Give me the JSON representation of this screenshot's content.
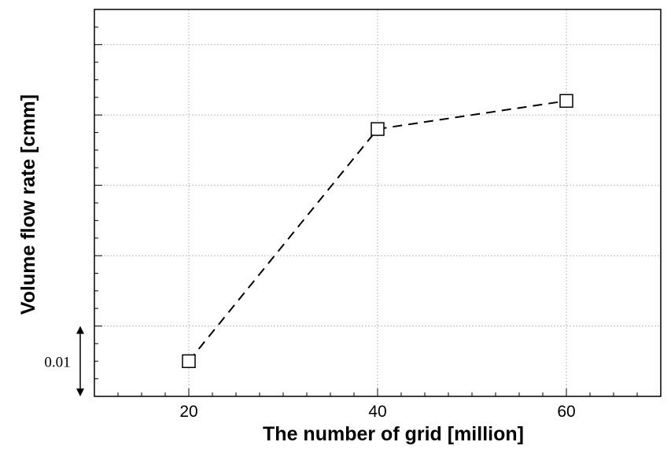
{
  "chart_data": {
    "type": "line",
    "xlabel": "The number of grid [million]",
    "ylabel": "Volume flow rate [cmm]",
    "xlim": [
      10,
      70
    ],
    "ylim": [
      0,
      0.055
    ],
    "x_ticks": [
      20,
      40,
      60
    ],
    "x_tick_labels": [
      "20",
      "40",
      "60"
    ],
    "grid": true,
    "line_style": "dashed",
    "marker": "open-square",
    "series": [
      {
        "x": [
          20,
          40,
          60
        ],
        "y": [
          0.005,
          0.038,
          0.042
        ]
      }
    ],
    "annotation": {
      "label": "0.01",
      "y_from": 0,
      "y_to": 0.01
    }
  }
}
